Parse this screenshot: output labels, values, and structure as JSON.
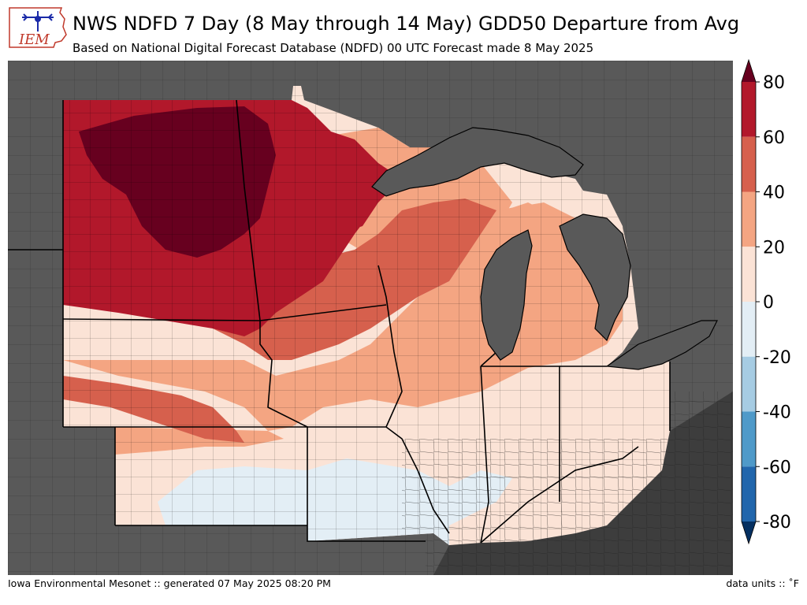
{
  "header": {
    "logo_text": "IEM",
    "title": "NWS NDFD 7 Day (8 May through 14 May) GDD50 Departure from Avg",
    "subtitle": "Based on National Digital Forecast Database (NDFD) 00 UTC Forecast made 8 May 2025"
  },
  "footer": {
    "left": "Iowa Environmental Mesonet :: generated 07 May 2025 08:20 PM",
    "right": "data units :: ˚F"
  },
  "colorbar": {
    "tick_labels": [
      "80",
      "60",
      "40",
      "20",
      "0",
      "-20",
      "-40",
      "-60",
      "-80"
    ],
    "bins": [
      {
        "range": [
          60,
          80
        ],
        "color": "#b2182b"
      },
      {
        "range": [
          40,
          60
        ],
        "color": "#d6604d"
      },
      {
        "range": [
          20,
          40
        ],
        "color": "#f4a582"
      },
      {
        "range": [
          0,
          20
        ],
        "color": "#fbe3d6"
      },
      {
        "range": [
          -20,
          0
        ],
        "color": "#e3eef5"
      },
      {
        "range": [
          -40,
          -20
        ],
        "color": "#a6cce3"
      },
      {
        "range": [
          -60,
          -40
        ],
        "color": "#4f9ac9"
      },
      {
        "range": [
          -80,
          -60
        ],
        "color": "#2166ac"
      }
    ],
    "over_color": "#67001f",
    "under_color": "#053061"
  },
  "map_colors": {
    "outside": "#595959",
    "water": "#595959",
    "c80": "#67001f",
    "c60": "#b2182b",
    "c40": "#d6604d",
    "c20": "#f4a582",
    "c0": "#fbe3d6",
    "cm20": "#e3eef5"
  }
}
